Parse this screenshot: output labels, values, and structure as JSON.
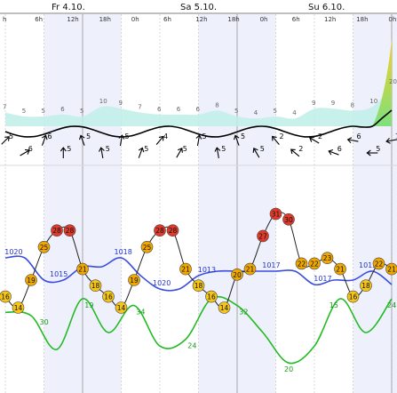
{
  "colors": {
    "pressure": "#3a4de0",
    "humidity": "#22bb22",
    "temperature_line": "#222222",
    "temp_warm": "#e23a2a",
    "temp_mid": "#f0a800",
    "temp_cool": "#f5c518",
    "wave_fill": "#bfeee8",
    "day_shade": "#eef0fb",
    "grid": "#c8c8c8"
  },
  "days": [
    {
      "label": "Fr 4.10."
    },
    {
      "label": "Sa 5.10."
    },
    {
      "label": "Su 6.10."
    }
  ],
  "hour_labels": [
    "h",
    "6h",
    "12h",
    "18h",
    "0h",
    "6h",
    "12h",
    "18h",
    "0h",
    "6h",
    "12h",
    "18h",
    "0h"
  ],
  "chart_data": [
    {
      "type": "area",
      "title": "",
      "x": [
        0,
        3,
        6,
        9,
        12,
        15,
        18,
        21,
        24,
        27,
        30,
        33,
        36,
        39,
        42,
        45,
        48,
        51,
        54,
        57,
        60
      ],
      "wave_values": [
        7,
        5,
        5,
        6,
        5,
        10,
        9,
        7,
        6,
        6,
        6,
        8,
        5,
        4,
        5,
        4,
        9,
        9,
        8,
        10,
        20
      ],
      "wave_labels": [
        "7",
        "5",
        "5",
        "6",
        "5",
        "10",
        "9",
        "7",
        "6",
        "6",
        "6",
        "8",
        "5",
        "4",
        "5",
        "4",
        "9",
        "9",
        "8",
        "10",
        "20"
      ]
    },
    {
      "type": "scatter",
      "title": "",
      "x": [
        0,
        3,
        6,
        9,
        12,
        15,
        18,
        21,
        24,
        27,
        30,
        33,
        36,
        39,
        42,
        45,
        48,
        51,
        54,
        57,
        60
      ],
      "wind_values": [
        5,
        6,
        6,
        5,
        5,
        5,
        5,
        5,
        4,
        5,
        5,
        5,
        5,
        5,
        2,
        2,
        2,
        6,
        6,
        5,
        7
      ],
      "wind_direction_deg": [
        225,
        240,
        200,
        180,
        160,
        170,
        190,
        200,
        220,
        210,
        190,
        170,
        160,
        150,
        140,
        130,
        120,
        110,
        100,
        90,
        80
      ],
      "wind_labels": [
        "5",
        "6",
        "6",
        "5",
        "5",
        "5",
        "5",
        "5",
        "4",
        "5",
        "5",
        "5",
        "5",
        "5",
        "2",
        "2",
        "2",
        "6",
        "6",
        "5",
        "7"
      ]
    },
    {
      "type": "line",
      "title": "",
      "series": [
        {
          "name": "pressure",
          "x": [
            0,
            3,
            6,
            9,
            12,
            15,
            18,
            21,
            24,
            27,
            30,
            33,
            36,
            39,
            42,
            45,
            48,
            51,
            54,
            57,
            60
          ],
          "values": [
            1020,
            1020,
            1015,
            1015,
            1018,
            1018,
            1020,
            1016,
            1013,
            1013,
            1016,
            1017,
            1017,
            1017,
            1017,
            1017,
            1014,
            1015,
            1015,
            1017,
            1014
          ],
          "labels": [
            {
              "x": 1,
              "text": "1020"
            },
            {
              "x": 8,
              "text": "1015"
            },
            {
              "x": 18,
              "text": "1018"
            },
            {
              "x": 24,
              "text": "1020"
            },
            {
              "x": 31,
              "text": "1013"
            },
            {
              "x": 41,
              "text": "1017"
            },
            {
              "x": 49,
              "text": "1017"
            },
            {
              "x": 56,
              "text": "1015"
            }
          ]
        },
        {
          "name": "temperature",
          "x": [
            0,
            2,
            4,
            6,
            8,
            10,
            12,
            14,
            16,
            18,
            20,
            22,
            24,
            26,
            28,
            30,
            32,
            34,
            36,
            38,
            40,
            42,
            44,
            46,
            48,
            50,
            52,
            54,
            56,
            58,
            60
          ],
          "values": [
            16,
            14,
            19,
            25,
            28,
            28,
            21,
            18,
            16,
            14,
            19,
            25,
            28,
            28,
            21,
            18,
            16,
            14,
            20,
            21,
            27,
            31,
            30,
            22,
            22,
            23,
            21,
            16,
            18,
            22,
            21
          ],
          "labels": [
            16,
            14,
            19,
            25,
            28,
            28,
            21,
            18,
            16,
            14,
            19,
            25,
            28,
            28,
            21,
            18,
            16,
            14,
            20,
            21,
            27,
            31,
            30,
            22,
            22,
            23,
            21,
            16,
            18,
            22,
            21
          ]
        },
        {
          "name": "humidity",
          "x": [
            0,
            4,
            8,
            12,
            16,
            20,
            24,
            28,
            32,
            36,
            40,
            44,
            48,
            52,
            56,
            60
          ],
          "values": [
            30,
            29,
            19,
            34,
            24,
            32,
            20,
            22,
            34,
            32,
            24,
            15,
            20,
            34,
            24,
            34
          ],
          "labels": [
            {
              "x": 6,
              "text": "30"
            },
            {
              "x": 13,
              "text": "19"
            },
            {
              "x": 21,
              "text": "34"
            },
            {
              "x": 29,
              "text": "24"
            },
            {
              "x": 37,
              "text": "32"
            },
            {
              "x": 44,
              "text": "20"
            },
            {
              "x": 51,
              "text": "15"
            },
            {
              "x": 60,
              "text": "24"
            }
          ]
        }
      ]
    }
  ]
}
